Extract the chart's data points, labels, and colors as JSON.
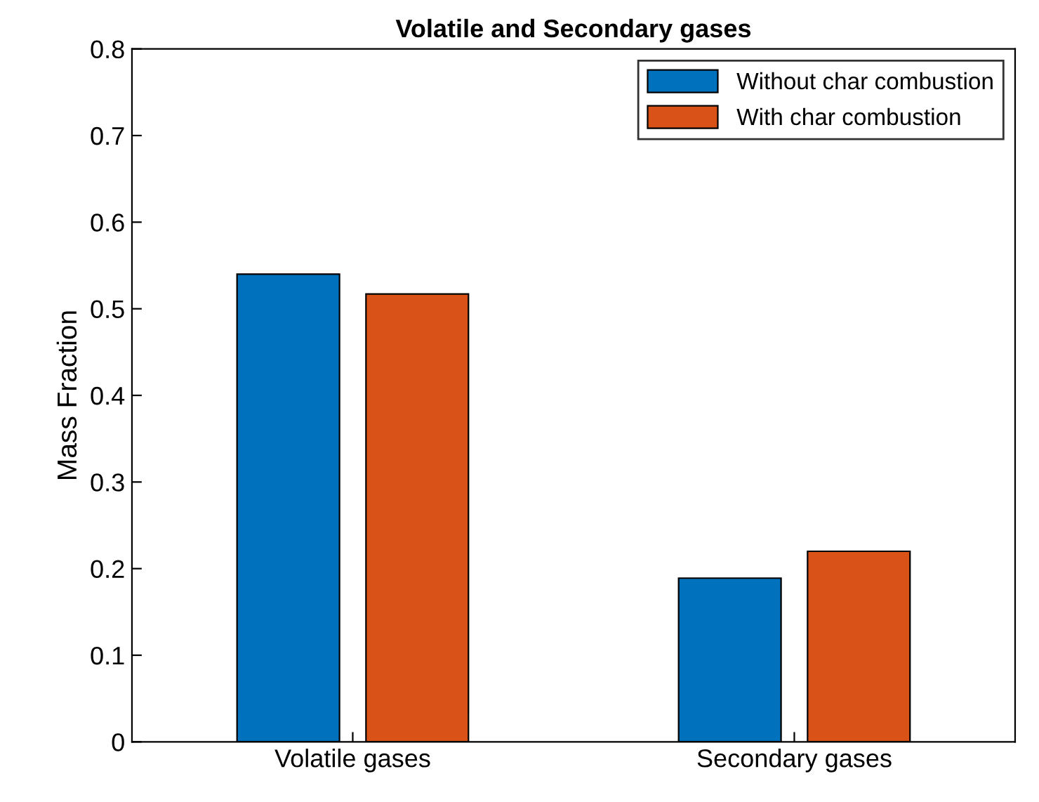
{
  "chart_data": {
    "type": "bar",
    "title": "Volatile and Secondary gases",
    "ylabel": "Mass Fraction",
    "categories": [
      "Volatile gases",
      "Secondary gases"
    ],
    "series": [
      {
        "name": "Without char combustion",
        "color": "#0072bd",
        "values": [
          0.54,
          0.189
        ]
      },
      {
        "name": "With char combustion",
        "color": "#d95319",
        "values": [
          0.517,
          0.22
        ]
      }
    ],
    "ylim": [
      0,
      0.8
    ],
    "yticks": [
      0,
      0.1,
      0.2,
      0.3,
      0.4,
      0.5,
      0.6,
      0.7,
      0.8
    ],
    "grid": false,
    "legend": "top right"
  }
}
